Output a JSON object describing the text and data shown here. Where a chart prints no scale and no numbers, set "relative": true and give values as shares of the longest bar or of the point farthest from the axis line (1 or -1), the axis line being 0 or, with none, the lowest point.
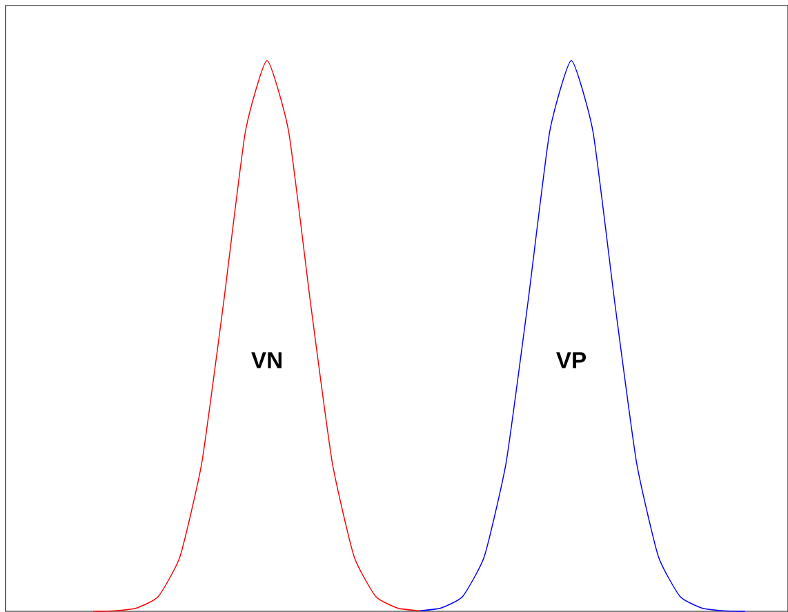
{
  "chart_data": {
    "type": "line",
    "relative": true,
    "categories": [
      null,
      null,
      null,
      null,
      null,
      null,
      null,
      null,
      null,
      null,
      null,
      null,
      null,
      null,
      null,
      null,
      null,
      null,
      null,
      null,
      null,
      null,
      null,
      null,
      null,
      null,
      null,
      null,
      null,
      null,
      null
    ],
    "series": [
      {
        "name": "VN",
        "color": "#ff0000",
        "values": [
          0,
          0.001,
          0.006,
          0.027,
          0.1,
          0.27,
          0.56,
          0.87,
          1,
          0.87,
          0.56,
          0.27,
          0.1,
          0.027,
          0.006,
          0.001,
          null,
          null,
          null,
          null,
          null,
          null,
          null,
          null,
          null,
          null,
          null,
          null,
          null,
          null,
          null
        ]
      },
      {
        "name": "VP",
        "color": "#0000ff",
        "values": [
          null,
          null,
          null,
          null,
          null,
          null,
          null,
          null,
          null,
          null,
          null,
          null,
          null,
          null,
          null,
          0.001,
          0.006,
          0.027,
          0.1,
          0.27,
          0.56,
          0.87,
          1,
          0.87,
          0.56,
          0.27,
          0.1,
          0.027,
          0.006,
          0.001,
          0
        ]
      }
    ]
  }
}
